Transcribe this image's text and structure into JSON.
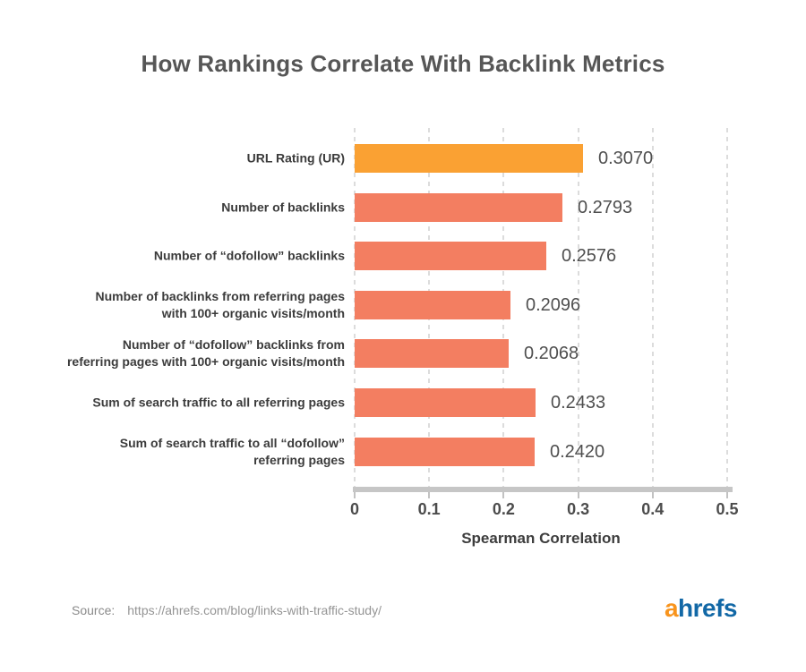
{
  "title": "How Rankings Correlate With Backlink Metrics",
  "chart_data": {
    "type": "bar",
    "orientation": "horizontal",
    "title": "How Rankings Correlate With Backlink Metrics",
    "xlabel": "Spearman Correlation",
    "ylabel": "",
    "xlim": [
      0,
      0.5
    ],
    "x_ticks": [
      "0",
      "0.1",
      "0.2",
      "0.3",
      "0.4",
      "0.5"
    ],
    "x_tick_values": [
      0,
      0.1,
      0.2,
      0.3,
      0.4,
      0.5
    ],
    "grid": "vertical-dashed",
    "legend": "none",
    "rows": [
      {
        "label": "URL Rating (UR)",
        "label_lines": [
          "URL Rating (UR)"
        ],
        "value": 0.307,
        "display": "0.3070",
        "highlight": true
      },
      {
        "label": "Number of backlinks",
        "label_lines": [
          "Number of backlinks"
        ],
        "value": 0.2793,
        "display": "0.2793",
        "highlight": false
      },
      {
        "label": "Number of “dofollow” backlinks",
        "label_lines": [
          "Number of “dofollow” backlinks"
        ],
        "value": 0.2576,
        "display": "0.2576",
        "highlight": false
      },
      {
        "label": "Number of backlinks from referring pages with 100+ organic visits/month",
        "label_lines": [
          "Number of backlinks from referring pages",
          "with 100+ organic visits/month"
        ],
        "value": 0.2096,
        "display": "0.2096",
        "highlight": false
      },
      {
        "label": "Number of “dofollow” backlinks from referring pages with 100+ organic visits/month",
        "label_lines": [
          "Number of “dofollow” backlinks from",
          "referring pages with 100+ organic visits/month"
        ],
        "value": 0.2068,
        "display": "0.2068",
        "highlight": false
      },
      {
        "label": "Sum of search traffic to all referring pages",
        "label_lines": [
          "Sum of search traffic to all referring pages"
        ],
        "value": 0.2433,
        "display": "0.2433",
        "highlight": false
      },
      {
        "label": "Sum of search traffic to all “dofollow” referring pages",
        "label_lines": [
          "Sum of search traffic to all “dofollow”",
          "referring pages"
        ],
        "value": 0.242,
        "display": "0.2420",
        "highlight": false
      }
    ]
  },
  "colors": {
    "highlight_bar": "#FAA133",
    "bar": "#F37E61",
    "grid": "#DCDCDC",
    "axis": "#C6C6C6",
    "title_text": "#565656",
    "category_text": "#3B3B3B",
    "value_text": "#4F4F4F",
    "tick_text": "#4C4C4C"
  },
  "footer": {
    "source_label": "Source:",
    "source_url": "https://ahrefs.com/blog/links-with-traffic-study/"
  },
  "logo": {
    "prefix": "a",
    "suffix": "hrefs",
    "prefix_color": "#F8941D",
    "suffix_color": "#1268A6"
  }
}
